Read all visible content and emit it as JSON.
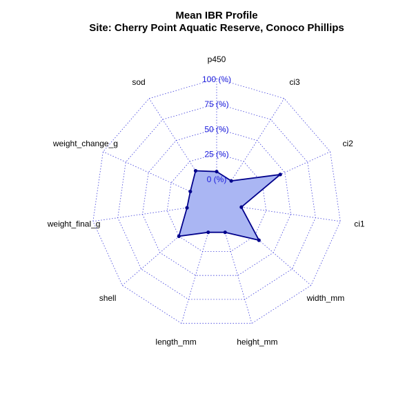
{
  "chart_data": {
    "type": "radar",
    "title": "Mean IBR Profile",
    "subtitle": "Site: Cherry Point Aquatic Reserve, Conoco Phillips",
    "axes": [
      "p450",
      "ci3",
      "ci2",
      "ci1",
      "width_mm",
      "height_mm",
      "length_mm",
      "shell",
      "weight_final_g",
      "weight_change_g",
      "sod"
    ],
    "rlim": [
      -25,
      100
    ],
    "ticks": [
      0,
      25,
      50,
      75,
      100
    ],
    "tick_labels": [
      "0 (%)",
      "25 (%)",
      "50 (%)",
      "75 (%)",
      "100 (%)"
    ],
    "grid": true,
    "series": [
      {
        "values": [
          7,
          2,
          45,
          0,
          31,
          5,
          5,
          25,
          5,
          4,
          14
        ],
        "color": "#00008b",
        "fill": "#aab6f3"
      }
    ]
  }
}
